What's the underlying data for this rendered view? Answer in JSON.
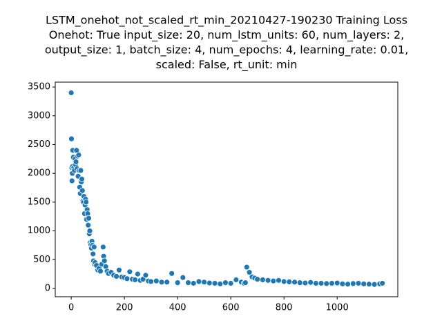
{
  "chart_data": {
    "type": "scatter",
    "title": [
      "LSTM_onehot_not_scaled_rt_min_20210427-190230 Training Loss",
      "Onehot: True input_size: 20, num_lstm_units: 60, num_layers: 2,",
      "output_size: 1, batch_size: 4, num_epochs: 4, learning_rate: 0.01,",
      "scaled: False, rt_unit: min"
    ],
    "color": "#1f77b4",
    "x": [
      0,
      1,
      2,
      3,
      4,
      5,
      6,
      8,
      10,
      12,
      14,
      16,
      18,
      20,
      22,
      24,
      26,
      28,
      30,
      32,
      34,
      36,
      38,
      40,
      42,
      44,
      46,
      48,
      50,
      52,
      54,
      56,
      58,
      60,
      62,
      64,
      66,
      68,
      70,
      72,
      74,
      76,
      78,
      80,
      82,
      84,
      86,
      88,
      90,
      95,
      100,
      105,
      110,
      115,
      120,
      122,
      125,
      130,
      135,
      140,
      150,
      160,
      170,
      180,
      190,
      200,
      210,
      220,
      230,
      240,
      250,
      260,
      270,
      280,
      290,
      300,
      320,
      340,
      360,
      378,
      400,
      420,
      440,
      460,
      480,
      500,
      520,
      540,
      560,
      580,
      600,
      620,
      640,
      650,
      655,
      660,
      670,
      680,
      690,
      700,
      720,
      740,
      760,
      780,
      800,
      820,
      840,
      860,
      880,
      900,
      920,
      940,
      960,
      980,
      1000,
      1020,
      1040,
      1060,
      1080,
      1100,
      1120,
      1140,
      1160,
      1170
    ],
    "values": [
      3400,
      2600,
      2100,
      1870,
      2000,
      2120,
      2400,
      2280,
      2100,
      2050,
      2250,
      2150,
      2200,
      2400,
      2080,
      2300,
      1950,
      2320,
      2050,
      1760,
      1650,
      2050,
      1850,
      1900,
      1700,
      1520,
      1500,
      1600,
      1300,
      1450,
      1550,
      1500,
      1200,
      1370,
      1300,
      1100,
      1220,
      950,
      1000,
      800,
      760,
      700,
      820,
      750,
      600,
      480,
      720,
      420,
      450,
      400,
      320,
      350,
      300,
      420,
      720,
      560,
      480,
      380,
      300,
      260,
      280,
      230,
      210,
      320,
      200,
      190,
      170,
      290,
      160,
      150,
      250,
      140,
      160,
      230,
      130,
      120,
      130,
      110,
      110,
      260,
      100,
      190,
      100,
      90,
      120,
      110,
      95,
      90,
      80,
      100,
      90,
      150,
      110,
      90,
      100,
      370,
      280,
      200,
      180,
      160,
      150,
      140,
      130,
      140,
      120,
      115,
      110,
      100,
      95,
      105,
      90,
      90,
      85,
      90,
      95,
      80,
      75,
      85,
      90,
      80,
      75,
      70,
      80,
      90
    ],
    "xlim": [
      -60,
      1228
    ],
    "ylim": [
      -144,
      3585
    ],
    "xticks": [
      0,
      200,
      400,
      600,
      800,
      1000
    ],
    "yticks": [
      0,
      500,
      1000,
      1500,
      2000,
      2500,
      3000,
      3500
    ]
  }
}
